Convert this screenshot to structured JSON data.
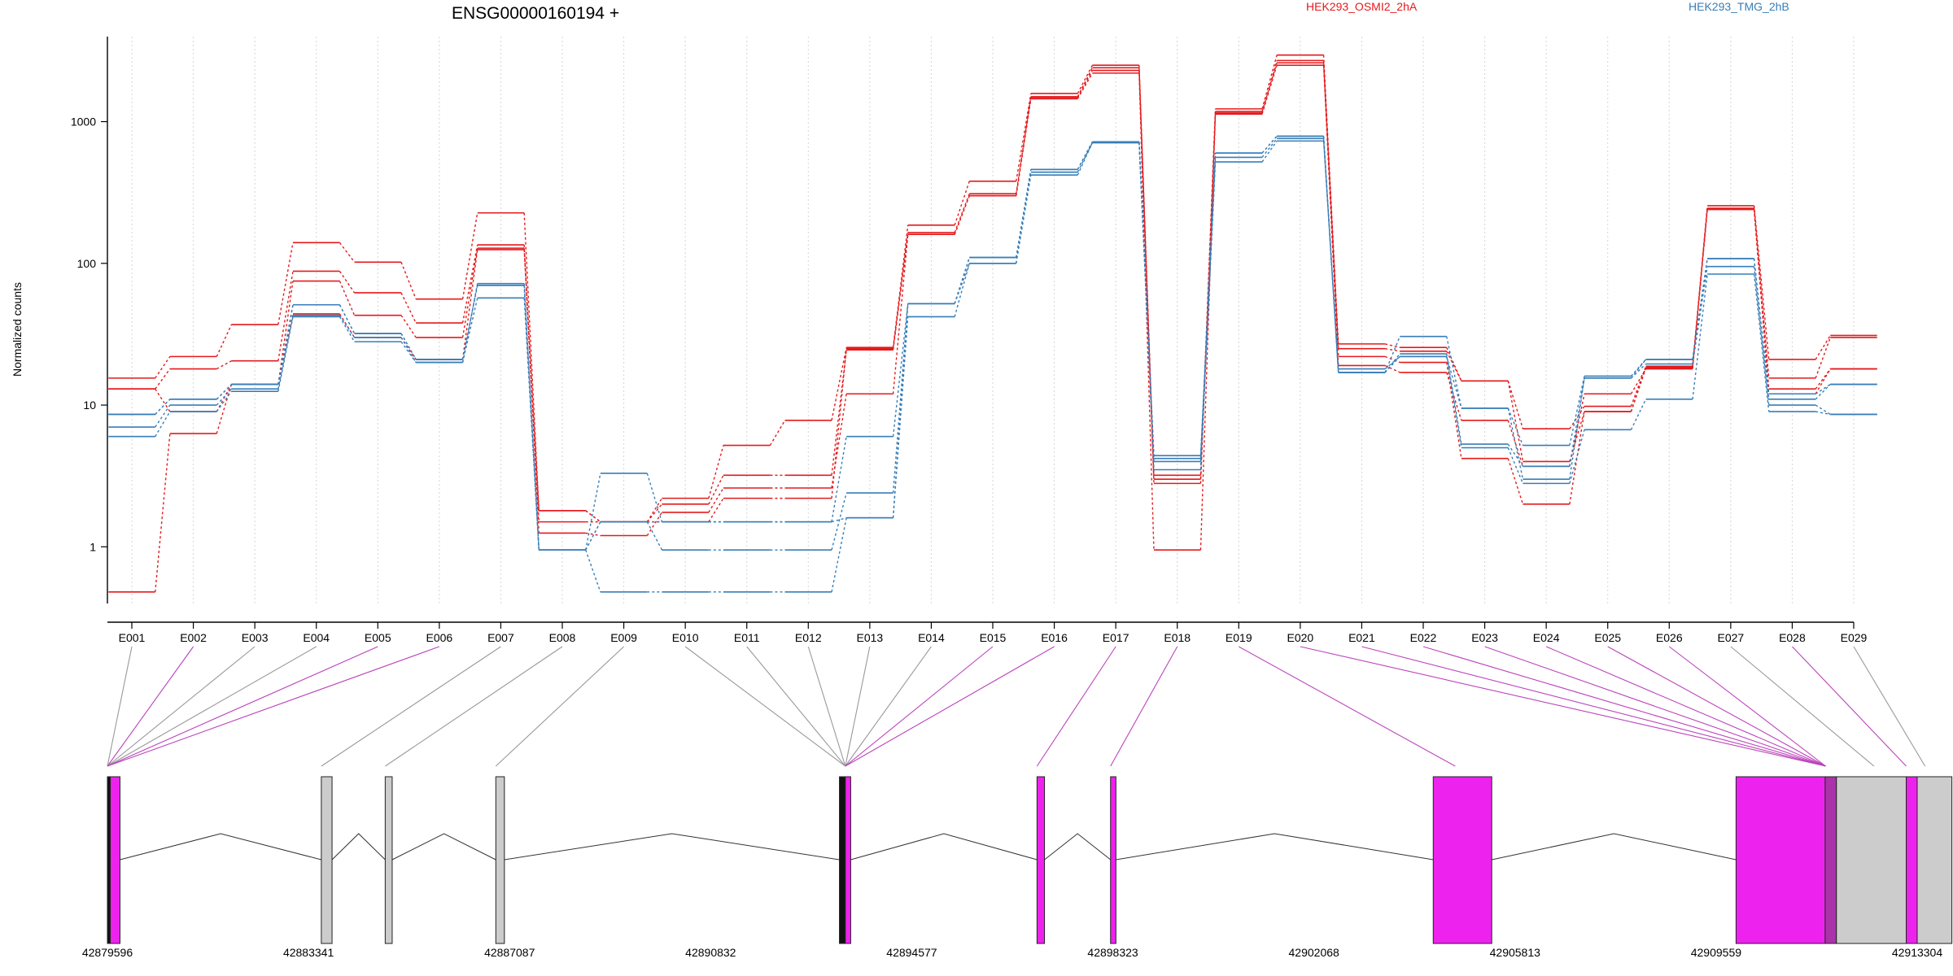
{
  "chart_data": {
    "type": "line",
    "title": "ENSG00000160194 +",
    "ylabel": "Normalized counts",
    "yscale": "log",
    "ylim": [
      0.4,
      4000
    ],
    "yticks": [
      1,
      10,
      100,
      1000
    ],
    "grid": "vertical dotted at exons",
    "categories": [
      "E001",
      "E002",
      "E003",
      "E004",
      "E005",
      "E006",
      "E007",
      "E008",
      "E009",
      "E010",
      "E011",
      "E012",
      "E013",
      "E014",
      "E015",
      "E016",
      "E017",
      "E018",
      "E019",
      "E020",
      "E021",
      "E022",
      "E023",
      "E024",
      "E025",
      "E026",
      "E027",
      "E028",
      "E029"
    ],
    "legend": [
      {
        "name": "HEK293_OSMI2_2hA",
        "color": "#e41a1c"
      },
      {
        "name": "HEK293_TMG_2hB",
        "color": "#377eb8"
      }
    ],
    "series": [
      {
        "group": "HEK293_OSMI2_2hA",
        "color": "#e41a1c",
        "values": [
          15.5,
          22,
          37,
          140,
          102,
          56,
          227,
          1.8,
          1.5,
          2.2,
          5.2,
          7.8,
          25.5,
          186,
          380,
          1580,
          2500,
          3.2,
          1230,
          2950,
          27,
          25.5,
          14.8,
          6.8,
          9.8,
          18.8,
          255,
          21,
          31
        ]
      },
      {
        "group": "HEK293_OSMI2_2hA",
        "color": "#e41a1c",
        "values": [
          13,
          18,
          20.5,
          88,
          62,
          38,
          135,
          1.5,
          1.5,
          2.0,
          3.2,
          3.2,
          24.5,
          165,
          310,
          1500,
          2400,
          3.0,
          1180,
          2600,
          25,
          24,
          14.8,
          4.0,
          9.0,
          18.2,
          245,
          15.5,
          30
        ]
      },
      {
        "group": "HEK293_OSMI2_2hA",
        "color": "#e41a1c",
        "values": [
          0.48,
          6.3,
          14,
          75,
          43,
          30,
          128,
          1.25,
          1.2,
          1.75,
          2.6,
          2.6,
          12,
          160,
          300,
          1450,
          2200,
          0.95,
          1130,
          2500,
          19,
          17,
          7.8,
          3.7,
          12,
          18,
          240,
          13,
          18
        ]
      },
      {
        "group": "HEK293_OSMI2_2hA",
        "color": "#e41a1c",
        "values": [
          13,
          9,
          14,
          44,
          30,
          21,
          125,
          1.8,
          1.5,
          1.5,
          2.2,
          2.2,
          25,
          160,
          300,
          1480,
          2300,
          2.8,
          1150,
          2700,
          22,
          20,
          4.2,
          2.0,
          9.0,
          18.5,
          242,
          12,
          18
        ]
      },
      {
        "group": "HEK293_TMG_2hB",
        "color": "#377eb8",
        "values": [
          8.6,
          11,
          14,
          51,
          32,
          21,
          70,
          0.95,
          3.3,
          1.5,
          1.5,
          1.5,
          6,
          52,
          110,
          460,
          720,
          4.4,
          600,
          790,
          17,
          30.5,
          9.5,
          5.2,
          16,
          21,
          108,
          12,
          14
        ]
      },
      {
        "group": "HEK293_TMG_2hB",
        "color": "#377eb8",
        "values": [
          7.0,
          10,
          13,
          43,
          30,
          20,
          72,
          0.95,
          1.5,
          0.95,
          0.95,
          0.95,
          2.4,
          52,
          100,
          440,
          710,
          4.2,
          560,
          760,
          17,
          23,
          5.3,
          3.7,
          15.5,
          19.5,
          95,
          10,
          8.6
        ]
      },
      {
        "group": "HEK293_TMG_2hB",
        "color": "#377eb8",
        "values": [
          6.0,
          9,
          12.5,
          42,
          28,
          20,
          57,
          0.95,
          0.48,
          0.48,
          0.48,
          0.48,
          1.6,
          42,
          100,
          420,
          710,
          3.5,
          520,
          730,
          18,
          22,
          5.0,
          2.8,
          6.7,
          11,
          84,
          9,
          8.6
        ]
      },
      {
        "group": "HEK293_TMG_2hB",
        "color": "#377eb8",
        "values": [
          8.6,
          11,
          14,
          51,
          32,
          21,
          70,
          0.95,
          1.5,
          1.5,
          1.5,
          1.5,
          1.6,
          52,
          110,
          460,
          720,
          4.0,
          600,
          790,
          17,
          22,
          9.5,
          3.0,
          15.5,
          21,
          108,
          11,
          14
        ]
      }
    ],
    "gene_model": {
      "xticks": [
        "42879596",
        "42883341",
        "42887087",
        "42890832",
        "42894577",
        "42898323",
        "42902068",
        "42905813",
        "42909559",
        "42913304"
      ],
      "xlim": [
        42879596,
        42913304
      ],
      "exons": [
        {
          "start": 42879596,
          "end": 42879650,
          "fill": "#111111"
        },
        {
          "start": 42879650,
          "end": 42879830,
          "fill": "#ee22ee"
        },
        {
          "start": 42883580,
          "end": 42883780,
          "fill": "#cccccc"
        },
        {
          "start": 42884770,
          "end": 42884900,
          "fill": "#cccccc"
        },
        {
          "start": 42886830,
          "end": 42886990,
          "fill": "#cccccc"
        },
        {
          "start": 42893230,
          "end": 42893340,
          "fill": "#111111"
        },
        {
          "start": 42893340,
          "end": 42893440,
          "fill": "#ee22ee"
        },
        {
          "start": 42896910,
          "end": 42897050,
          "fill": "#ee22ee"
        },
        {
          "start": 42898280,
          "end": 42898380,
          "fill": "#ee22ee"
        },
        {
          "start": 42904290,
          "end": 42905380,
          "fill": "#ee22ee"
        },
        {
          "start": 42909930,
          "end": 42911590,
          "fill": "#ee22ee"
        },
        {
          "start": 42911590,
          "end": 42911800,
          "fill": "#aa33aa"
        },
        {
          "start": 42911800,
          "end": 42913100,
          "fill": "#cccccc"
        },
        {
          "start": 42913100,
          "end": 42913304,
          "fill": "#ee22ee"
        },
        {
          "start": 42913304,
          "end": 42913950,
          "fill": "#cccccc"
        }
      ],
      "connector_targets": [
        42879596,
        42879596,
        42879596,
        42879596,
        42879596,
        42879596,
        42883580,
        42884770,
        42886830,
        42893340,
        42893340,
        42893340,
        42893340,
        42893340,
        42893340,
        42893340,
        42896910,
        42898280,
        42904700,
        42911600,
        42911600,
        42911600,
        42911600,
        42911600,
        42911600,
        42911600,
        42912500,
        42913100,
        42913450
      ],
      "connector_colors": [
        "#999999",
        "#bb44bb",
        "#999999",
        "#999999",
        "#bb44bb",
        "#bb44bb",
        "#999999",
        "#999999",
        "#999999",
        "#999999",
        "#999999",
        "#999999",
        "#999999",
        "#999999",
        "#bb44bb",
        "#bb44bb",
        "#bb44bb",
        "#bb44bb",
        "#bb44bb",
        "#bb44bb",
        "#bb44bb",
        "#bb44bb",
        "#bb44bb",
        "#bb44bb",
        "#bb44bb",
        "#bb44bb",
        "#999999",
        "#bb44bb",
        "#999999"
      ]
    }
  }
}
